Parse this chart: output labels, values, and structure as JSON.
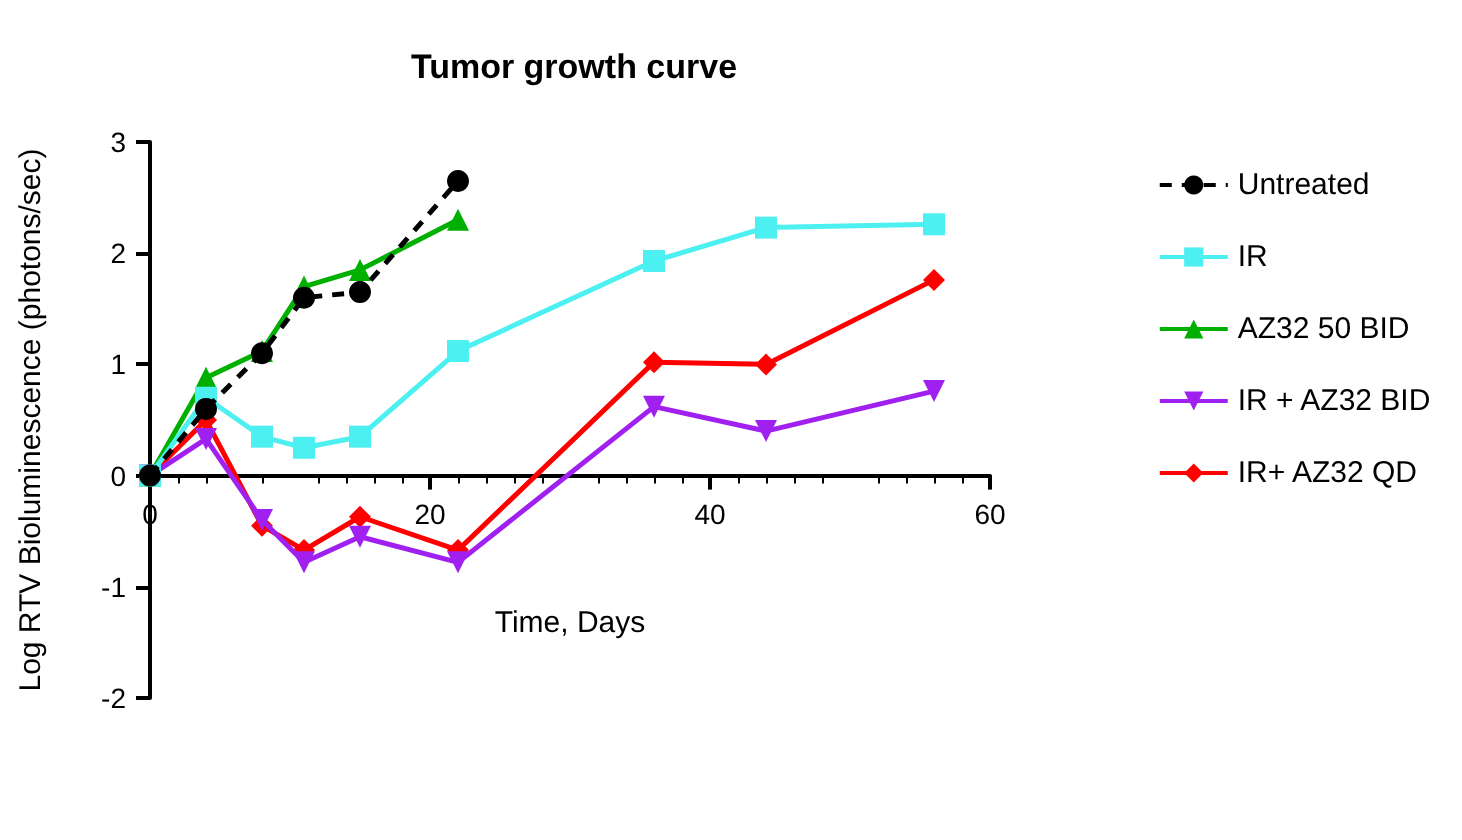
{
  "chart_data": {
    "type": "line",
    "title": "Tumor growth curve",
    "xlabel": "Time, Days",
    "ylabel": "Log RTV Bioluminescence (photons/sec)",
    "xlim": [
      0,
      60
    ],
    "xticks": [
      0,
      20,
      40,
      60
    ],
    "ylim": [
      -2,
      3
    ],
    "yticks": [
      -2,
      -1,
      0,
      1,
      2,
      3
    ],
    "grid": false,
    "legend": "right",
    "series": [
      {
        "name": "Untreated",
        "color": "#000000",
        "marker": "circle",
        "line_style": "dashed",
        "x": [
          0,
          4,
          8,
          11,
          15,
          22
        ],
        "values": [
          0,
          0.6,
          1.1,
          1.6,
          1.65,
          2.65
        ]
      },
      {
        "name": "IR",
        "color": "#4df0f0",
        "marker": "square",
        "line_style": "solid",
        "x": [
          0,
          4,
          8,
          11,
          15,
          22,
          36,
          44,
          56
        ],
        "values": [
          0,
          0.7,
          0.35,
          0.25,
          0.35,
          1.12,
          1.93,
          2.23,
          2.26
        ]
      },
      {
        "name": "AZ32 50 BID",
        "color": "#00b000",
        "marker": "triangle",
        "line_style": "solid",
        "x": [
          0,
          4,
          8,
          11,
          15,
          22
        ],
        "values": [
          0,
          0.88,
          1.12,
          1.7,
          1.85,
          2.3
        ]
      },
      {
        "name": "IR + AZ32 BID",
        "color": "#a020f0",
        "marker": "triangle-down",
        "line_style": "solid",
        "x": [
          0,
          4,
          8,
          11,
          15,
          22,
          36,
          44,
          56
        ],
        "values": [
          0,
          0.33,
          -0.4,
          -0.78,
          -0.55,
          -0.78,
          0.62,
          0.4,
          0.76
        ]
      },
      {
        "name": "IR+ AZ32 QD",
        "color": "#ff0000",
        "marker": "diamond",
        "line_style": "solid",
        "x": [
          0,
          4,
          8,
          11,
          15,
          22,
          36,
          44,
          56
        ],
        "values": [
          0,
          0.5,
          -0.45,
          -0.67,
          -0.37,
          -0.67,
          1.02,
          1.0,
          1.76
        ]
      }
    ]
  }
}
